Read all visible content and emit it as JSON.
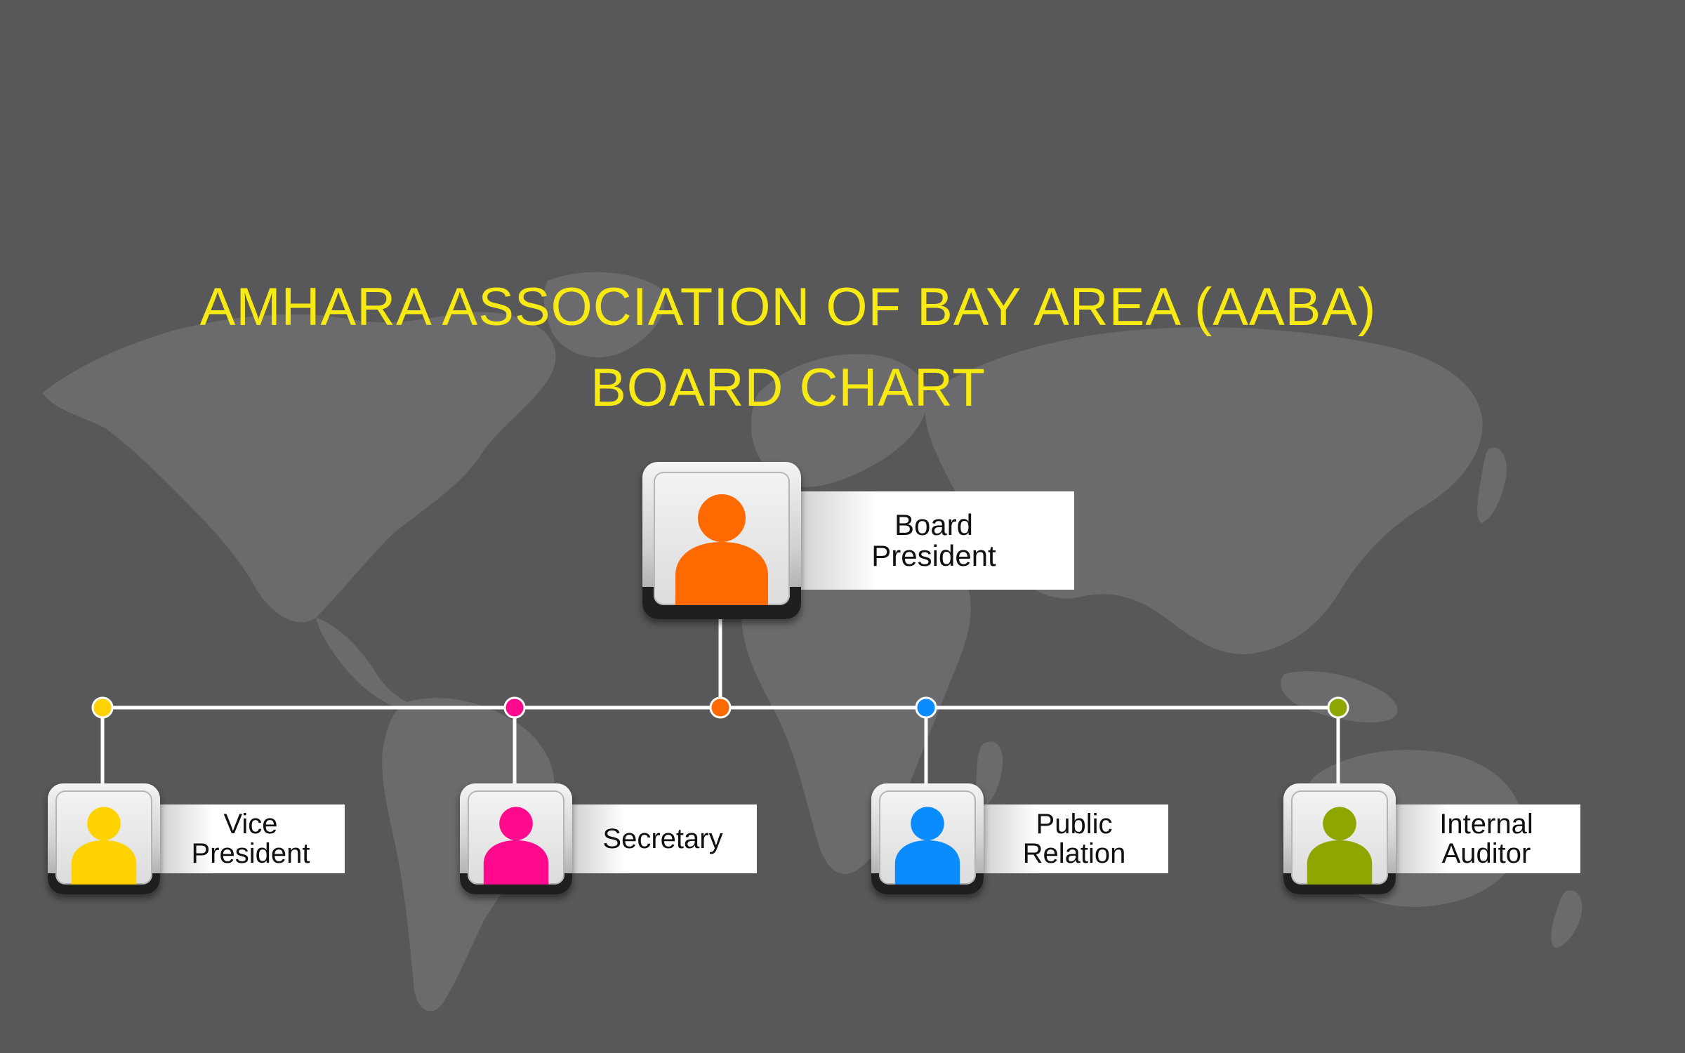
{
  "title": {
    "line1": "AMHARA ASSOCIATION OF BAY AREA (AABA)",
    "line2": "BOARD CHART"
  },
  "colors": {
    "background": "#58585a",
    "map": "#6b6b6d",
    "title": "#f6ea12",
    "connector": "#ffffff"
  },
  "president": {
    "label_lines": [
      "Board",
      "President"
    ],
    "color": "#ff6a00",
    "icon": "person-icon"
  },
  "members": [
    {
      "id": "vice-president",
      "label_lines": [
        "Vice",
        "President"
      ],
      "color": "#ffd200",
      "icon": "person-icon"
    },
    {
      "id": "secretary",
      "label_lines": [
        "Secretary"
      ],
      "color": "#ff0a8c",
      "icon": "person-icon"
    },
    {
      "id": "public-relation",
      "label_lines": [
        "Public",
        "Relation"
      ],
      "color": "#0a8cff",
      "icon": "person-icon"
    },
    {
      "id": "internal-auditor",
      "label_lines": [
        "Internal",
        "Auditor"
      ],
      "color": "#8fa600",
      "icon": "person-icon"
    }
  ]
}
